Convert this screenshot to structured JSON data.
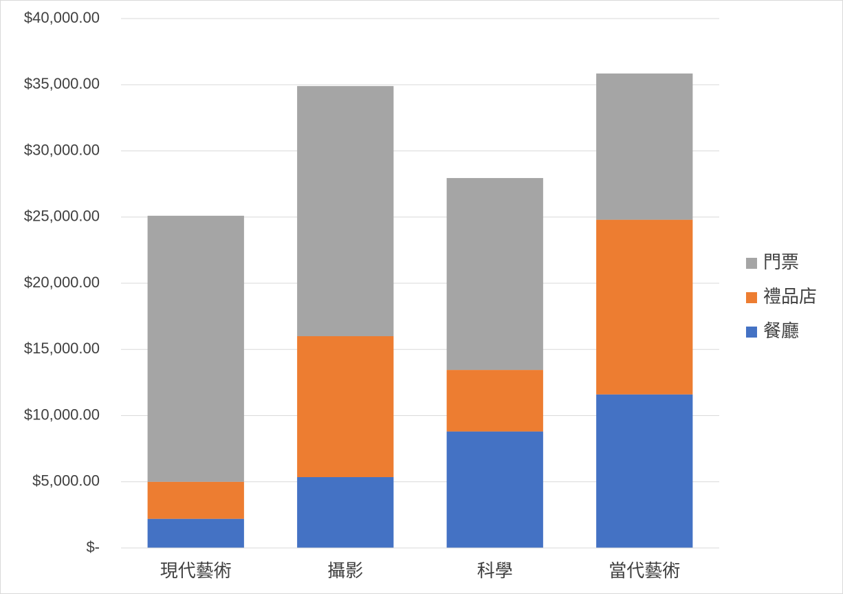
{
  "chart_data": {
    "type": "stacked_bar",
    "categories": [
      "現代藝術",
      "攝影",
      "科學",
      "當代藝術"
    ],
    "series": [
      {
        "name": "餐廳",
        "color": "#4472c4",
        "values": [
          2200,
          5350,
          8800,
          11600
        ]
      },
      {
        "name": "禮品店",
        "color": "#ed7d31",
        "values": [
          2800,
          10650,
          4650,
          13200
        ]
      },
      {
        "name": "門票",
        "color": "#a5a5a5",
        "values": [
          20100,
          18900,
          14500,
          11050
        ]
      }
    ],
    "ylim": [
      0,
      40000
    ],
    "yticks": [
      {
        "value": 0,
        "label": "$-"
      },
      {
        "value": 5000,
        "label": "$5,000.00"
      },
      {
        "value": 10000,
        "label": "$10,000.00"
      },
      {
        "value": 15000,
        "label": "$15,000.00"
      },
      {
        "value": 20000,
        "label": "$20,000.00"
      },
      {
        "value": 25000,
        "label": "$25,000.00"
      },
      {
        "value": 30000,
        "label": "$30,000.00"
      },
      {
        "value": 35000,
        "label": "$35,000.00"
      },
      {
        "value": 40000,
        "label": "$40,000.00"
      }
    ],
    "grid": true,
    "legend_position": "right"
  }
}
